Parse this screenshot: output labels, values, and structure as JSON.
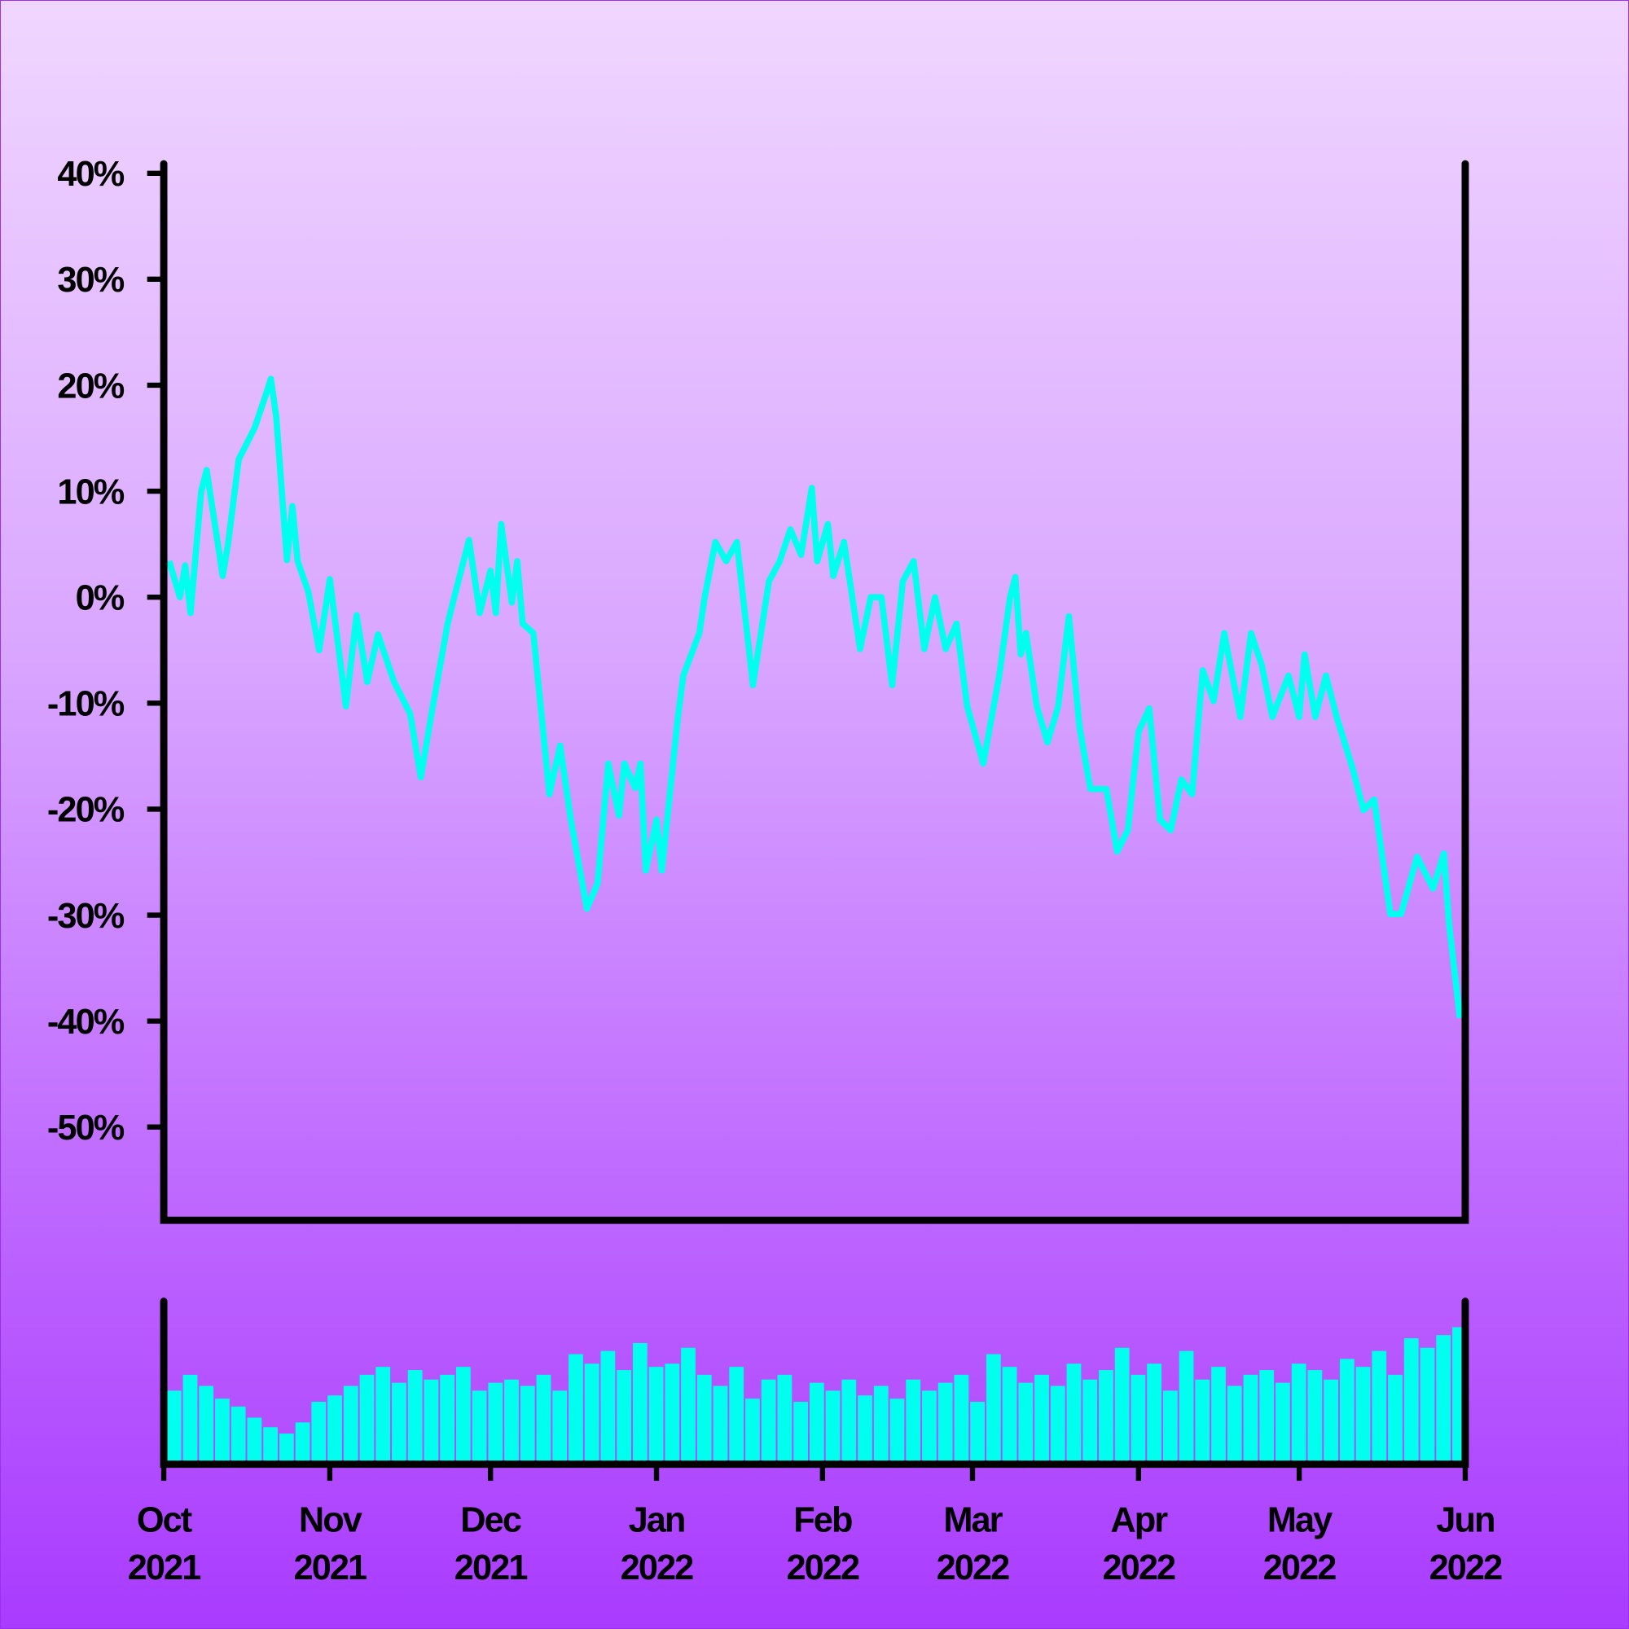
{
  "chart_data": [
    {
      "type": "line",
      "color": "#00ffee",
      "xlim": [
        0,
        243
      ],
      "ylim": [
        -58.8,
        40.9
      ],
      "yticks": [
        {
          "value": 40,
          "label": "40%"
        },
        {
          "value": 30,
          "label": "30%"
        },
        {
          "value": 20,
          "label": "20%"
        },
        {
          "value": 10,
          "label": "10%"
        },
        {
          "value": 0,
          "label": "0%"
        },
        {
          "value": -10,
          "label": "-10%"
        },
        {
          "value": -20,
          "label": "-20%"
        },
        {
          "value": -30,
          "label": "-30%"
        },
        {
          "value": -40,
          "label": "-40%"
        },
        {
          "value": -50,
          "label": "-50%"
        }
      ],
      "x": [
        1,
        3,
        4,
        5,
        7,
        8,
        11,
        12,
        14,
        17,
        19,
        20,
        21,
        23,
        24,
        25,
        27,
        29,
        31,
        34,
        36,
        38,
        40,
        43,
        46,
        48,
        50,
        53,
        55,
        57,
        59,
        61,
        62,
        63,
        65,
        66,
        67,
        69,
        72,
        74,
        76,
        79,
        81,
        83,
        85,
        86,
        88,
        89,
        90,
        92,
        93,
        96,
        97,
        100,
        101,
        103,
        105,
        107,
        110,
        113,
        115,
        117,
        119,
        121,
        122,
        124,
        125,
        127,
        130,
        132,
        134,
        136,
        138,
        140,
        142,
        144,
        146,
        148,
        150,
        153,
        156,
        158,
        159,
        160,
        161,
        163,
        165,
        167,
        169,
        171,
        173,
        176,
        178,
        180,
        182,
        184,
        186,
        188,
        190,
        192,
        194,
        196,
        198,
        201,
        203,
        205,
        207,
        210,
        212,
        213,
        215,
        217,
        219,
        222,
        224,
        226,
        229,
        231,
        234,
        237,
        239,
        240,
        242
      ],
      "values": [
        3.4,
        0,
        3,
        -1.5,
        10,
        12,
        2,
        5,
        13,
        16,
        19,
        20.6,
        17,
        3.5,
        8.6,
        3.4,
        0.5,
        -5,
        1.7,
        -10.3,
        -1.7,
        -8,
        -3.5,
        -8,
        -11,
        -17,
        -11,
        -2.5,
        1.5,
        5.4,
        -1.5,
        2.5,
        -1.5,
        6.9,
        -0.5,
        3.4,
        -2.5,
        -3.4,
        -18.6,
        -14,
        -21,
        -29.4,
        -27,
        -15.7,
        -20.6,
        -15.7,
        -18,
        -15.7,
        -25.8,
        -21,
        -25.8,
        -11.3,
        -7.4,
        -3.4,
        0,
        5.2,
        3.4,
        5.2,
        -8.3,
        1.5,
        3.4,
        6.4,
        4,
        10.3,
        3.4,
        6.9,
        2,
        5.2,
        -4.9,
        0,
        0,
        -8.3,
        1.5,
        3.4,
        -4.9,
        0,
        -4.9,
        -2.5,
        -10.3,
        -15.7,
        -7.4,
        0,
        1.9,
        -5.4,
        -3.4,
        -10.3,
        -13.7,
        -10.3,
        -1.8,
        -12.3,
        -18.1,
        -18.1,
        -24,
        -22,
        -12.7,
        -10.5,
        -21,
        -22,
        -17.2,
        -18.6,
        -6.9,
        -9.8,
        -3.4,
        -11.3,
        -3.4,
        -6.4,
        -11.3,
        -7.4,
        -11.3,
        -5.4,
        -11.3,
        -7.4,
        -11.3,
        -16.2,
        -20.1,
        -19.1,
        -29.9,
        -29.9,
        -24.5,
        -27.5,
        -24.2,
        -30.9,
        -39.7
      ]
    },
    {
      "type": "bar",
      "color": "#00ffee",
      "xlim": [
        0,
        243
      ],
      "ylim": [
        0,
        100
      ],
      "xticks": [
        {
          "value": 0,
          "label": "Oct 2021"
        },
        {
          "value": 31,
          "label": "Nov 2021"
        },
        {
          "value": 61,
          "label": "Dec 2021"
        },
        {
          "value": 92,
          "label": "Jan 2022"
        },
        {
          "value": 123,
          "label": "Feb 2022"
        },
        {
          "value": 151,
          "label": "Mar 2022"
        },
        {
          "value": 182,
          "label": "Apr 2022"
        },
        {
          "value": 212,
          "label": "May 2022"
        },
        {
          "value": 243,
          "label": "Jun 2022"
        }
      ],
      "x": [
        0,
        3,
        6,
        9,
        12,
        15,
        18,
        21,
        24,
        27,
        30,
        33,
        36,
        39,
        42,
        45,
        48,
        51,
        54,
        57,
        60,
        63,
        66,
        69,
        72,
        75,
        78,
        81,
        84,
        87,
        90,
        93,
        96,
        99,
        102,
        105,
        108,
        111,
        114,
        117,
        120,
        123,
        126,
        129,
        132,
        135,
        138,
        141,
        144,
        147,
        150,
        153,
        156,
        159,
        162,
        165,
        168,
        171,
        174,
        177,
        180,
        183,
        186,
        189,
        192,
        195,
        198,
        201,
        204,
        207,
        210,
        213,
        216,
        219,
        222,
        225,
        228,
        231,
        234,
        237,
        240
      ],
      "values": [
        45,
        55,
        48,
        40,
        35,
        28,
        22,
        18,
        25,
        38,
        42,
        48,
        55,
        60,
        50,
        58,
        52,
        55,
        60,
        45,
        50,
        52,
        48,
        55,
        45,
        68,
        62,
        70,
        58,
        75,
        60,
        62,
        72,
        55,
        48,
        60,
        40,
        52,
        55,
        38,
        50,
        45,
        52,
        42,
        48,
        40,
        52,
        45,
        50,
        55,
        38,
        68,
        60,
        50,
        55,
        48,
        62,
        52,
        58,
        72,
        55,
        62,
        45,
        70,
        52,
        60,
        48,
        55,
        58,
        50,
        62,
        58,
        52,
        65,
        60,
        70,
        55,
        78,
        72,
        80,
        85
      ]
    }
  ]
}
